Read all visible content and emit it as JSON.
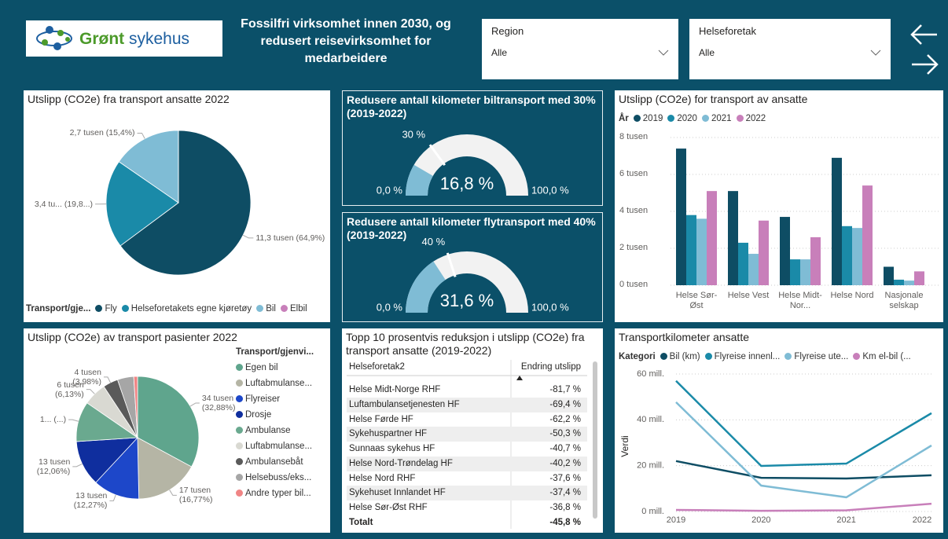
{
  "header": {
    "logo_text": [
      "Grønt",
      "sykehus"
    ],
    "title_lines": [
      "Fossilfri virksomhet innen 2030, og",
      "redusert reisevirksomhet for",
      "medarbeidere"
    ]
  },
  "slicers": [
    {
      "label": "Region",
      "value": "Alle"
    },
    {
      "label": "Helseforetak",
      "value": "Alle"
    }
  ],
  "chart_data": [
    {
      "type": "pie",
      "title": "Utslipp (CO2e) fra transport ansatte 2022",
      "legend_title": "Transport/gje...",
      "categories": [
        "Fly",
        "Helseforetakets egne kjøretøy",
        "Bil",
        "Elbil"
      ],
      "values": [
        64.9,
        19.8,
        15.4,
        0
      ],
      "value_labels": [
        "11,3 tusen (64,9%)",
        "3,4 tu... (19,8...)",
        "2,7 tusen (15,4%)",
        null
      ],
      "colors": [
        "#0e4d64",
        "#1a8aa8",
        "#7fbcd5",
        "#c87fba"
      ]
    },
    {
      "type": "gauge",
      "title": "Redusere antall kilometer biltransport med 30% (2019-2022)",
      "value": 16.8,
      "value_label": "16,8 %",
      "min": 0,
      "min_label": "0,0 %",
      "max": 100,
      "max_label": "100,0 %",
      "target": 30,
      "target_label": "30 %",
      "color": "#7fbcd5"
    },
    {
      "type": "gauge",
      "title": "Redusere antall kilometer flytransport med 40% (2019-2022)",
      "value": 31.6,
      "value_label": "31,6 %",
      "min": 0,
      "min_label": "0,0 %",
      "max": 100,
      "max_label": "100,0 %",
      "target": 40,
      "target_label": "40 %",
      "color": "#7fbcd5"
    },
    {
      "type": "bar",
      "title": "Utslipp (CO2e) for transport av ansatte",
      "legend_title": "År",
      "categories": [
        "Helse Sør-Øst",
        "Helse Vest",
        "Helse Midt-Nor...",
        "Helse Nord",
        "Nasjonale selskap"
      ],
      "series": [
        {
          "name": "2019",
          "color": "#0e4d64",
          "values": [
            7400,
            5100,
            3700,
            6900,
            1000
          ]
        },
        {
          "name": "2020",
          "color": "#1a8aa8",
          "values": [
            3800,
            2300,
            1400,
            3200,
            300
          ]
        },
        {
          "name": "2021",
          "color": "#7fbcd5",
          "values": [
            3600,
            1700,
            1400,
            3100,
            250
          ]
        },
        {
          "name": "2022",
          "color": "#c87fba",
          "values": [
            5100,
            3500,
            2600,
            5400,
            750
          ]
        }
      ],
      "ylim": [
        0,
        8000
      ],
      "yticks": [
        {
          "value": 0,
          "label": "0 tusen"
        },
        {
          "value": 2000,
          "label": "2 tusen"
        },
        {
          "value": 4000,
          "label": "4 tusen"
        },
        {
          "value": 6000,
          "label": "6 tusen"
        },
        {
          "value": 8000,
          "label": "8 tusen"
        }
      ],
      "grid": true
    },
    {
      "type": "pie",
      "title": "Utslipp (CO2e) av transport pasienter 2022",
      "legend_title": "Transport/gjenvi...",
      "categories": [
        "Egen bil",
        "Luftabmulanse...",
        "Flyreiser",
        "Drosje",
        "Ambulanse",
        "Luftabmulanse...",
        "Ambulansebåt",
        "Helsebuss/eks...",
        "Andre typer bil..."
      ],
      "values": [
        32.88,
        16.77,
        12.27,
        12.06,
        10.6,
        6.13,
        3.98,
        4.3,
        1.0
      ],
      "value_labels": [
        "34 tusen (32,88%)",
        "17 tusen (16,77%)",
        "13 tusen (12,27%)",
        "13 tusen (12,06%)",
        "1... (...)",
        "6 tusen (6,13%)",
        "4 tusen (3,98%)",
        null,
        null
      ],
      "colors": [
        "#5fa58d",
        "#b5b5a5",
        "#1d47c9",
        "#0f2e9e",
        "#6aa98f",
        "#d9d9d2",
        "#5a5a5a",
        "#a6a6a6",
        "#f08585"
      ]
    },
    {
      "type": "line",
      "title": "Transportkilometer ansatte",
      "legend_title": "Kategori",
      "y_label": "Verdi",
      "categories": [
        "2019",
        "2020",
        "2021",
        "2022"
      ],
      "series": [
        {
          "name": "Bil (km)",
          "color": "#0e4d64",
          "values": [
            22000000,
            14700000,
            14400000,
            15800000
          ]
        },
        {
          "name": "Flyreise innenl...",
          "color": "#1a8aa8",
          "values": [
            57000000,
            19900000,
            20900000,
            42900000
          ]
        },
        {
          "name": "Flyreise ute...",
          "color": "#7fbcd5",
          "values": [
            47700000,
            11300000,
            6200000,
            28800000
          ]
        },
        {
          "name": "Km el-bil (...",
          "color": "#c87fba",
          "values": [
            700000,
            300000,
            500000,
            3400000
          ]
        }
      ],
      "ylim": [
        0,
        60000000
      ],
      "yticks": [
        {
          "value": 0,
          "label": "0 mill."
        },
        {
          "value": 20000000,
          "label": "20 mill."
        },
        {
          "value": 40000000,
          "label": "40 mill."
        },
        {
          "value": 60000000,
          "label": "60 mill."
        }
      ],
      "grid": true
    }
  ],
  "table": {
    "title": "Topp 10 prosentvis reduksjon i utslipp (CO2e) fra transport ansatte (2019-2022)",
    "columns": [
      "Helseforetak2",
      "Endring utslipp"
    ],
    "rows": [
      [
        "Helse Midt-Norge RHF",
        "-81,7 %"
      ],
      [
        "Luftambulansetjenesten HF",
        "-69,4 %"
      ],
      [
        "Helse Førde HF",
        "-62,2 %"
      ],
      [
        "Sykehuspartner HF",
        "-50,3 %"
      ],
      [
        "Sunnaas sykehus HF",
        "-40,7 %"
      ],
      [
        "Helse Nord-Trøndelag HF",
        "-40,2 %"
      ],
      [
        "Helse Nord RHF",
        "-37,6 %"
      ],
      [
        "Sykehuset Innlandet HF",
        "-37,4 %"
      ],
      [
        "Helse Sør-Øst RHF",
        "-36,8 %"
      ]
    ],
    "total": [
      "Totalt",
      "-45,8 %"
    ]
  }
}
